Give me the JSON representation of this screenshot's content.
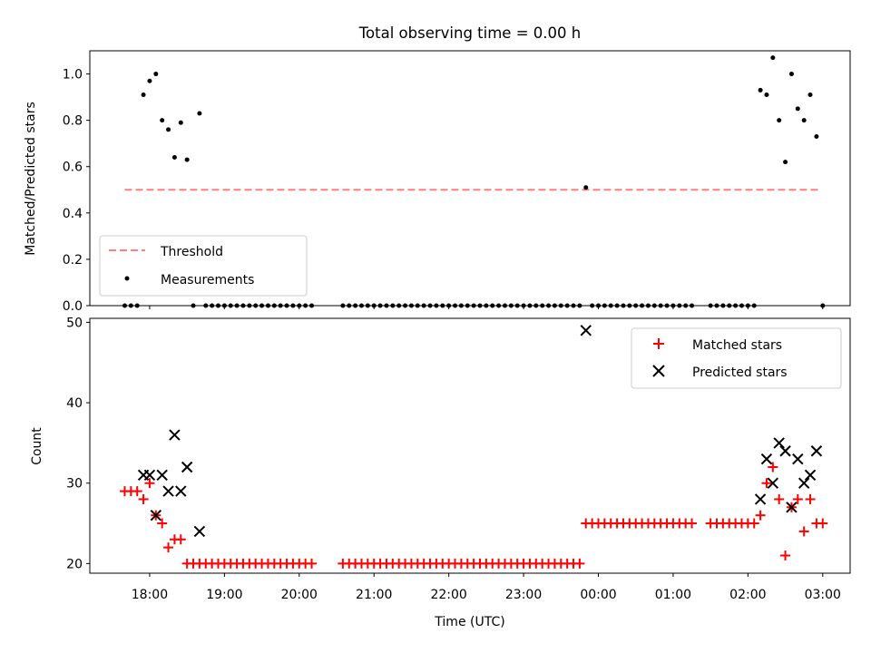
{
  "title": "Total observing time = 0.00 h",
  "chart_data": [
    {
      "type": "scatter",
      "ylabel": "Matched/Predicted stars",
      "ylim": [
        0,
        1.1
      ],
      "yticks": [
        "0.0",
        "0.2",
        "0.4",
        "0.6",
        "0.8",
        "1.0"
      ],
      "legend": {
        "placement": "lower-left",
        "entries": [
          "Threshold",
          "Measurements"
        ]
      },
      "threshold": {
        "name": "Threshold",
        "y": 0.5,
        "x_range": [
          "17:40",
          "02:57"
        ],
        "color": "#ff7f7f"
      },
      "measurements": {
        "name": "Measurements",
        "color": "#000000",
        "points": [
          [
            "17:40",
            0
          ],
          [
            "17:45",
            0
          ],
          [
            "17:50",
            0
          ],
          [
            "17:55",
            0.91
          ],
          [
            "18:00",
            0.97
          ],
          [
            "18:05",
            1.0
          ],
          [
            "18:10",
            0.8
          ],
          [
            "18:15",
            0.76
          ],
          [
            "18:20",
            0.64
          ],
          [
            "18:25",
            0.79
          ],
          [
            "18:30",
            0.63
          ],
          [
            "18:35",
            0
          ],
          [
            "18:40",
            0.83
          ],
          [
            "18:45",
            0
          ],
          [
            "18:50",
            0
          ],
          [
            "18:55",
            0
          ],
          [
            "19:00",
            0
          ],
          [
            "19:05",
            0
          ],
          [
            "19:10",
            0
          ],
          [
            "19:15",
            0
          ],
          [
            "19:20",
            0
          ],
          [
            "19:25",
            0
          ],
          [
            "19:30",
            0
          ],
          [
            "19:35",
            0
          ],
          [
            "19:40",
            0
          ],
          [
            "19:45",
            0
          ],
          [
            "19:50",
            0
          ],
          [
            "19:55",
            0
          ],
          [
            "20:00",
            0
          ],
          [
            "20:05",
            0
          ],
          [
            "20:10",
            0
          ],
          [
            "20:35",
            0
          ],
          [
            "20:40",
            0
          ],
          [
            "20:45",
            0
          ],
          [
            "20:50",
            0
          ],
          [
            "20:55",
            0
          ],
          [
            "21:00",
            0
          ],
          [
            "21:05",
            0
          ],
          [
            "21:10",
            0
          ],
          [
            "21:15",
            0
          ],
          [
            "21:20",
            0
          ],
          [
            "21:25",
            0
          ],
          [
            "21:30",
            0
          ],
          [
            "21:35",
            0
          ],
          [
            "21:40",
            0
          ],
          [
            "21:45",
            0
          ],
          [
            "21:50",
            0
          ],
          [
            "21:55",
            0
          ],
          [
            "22:00",
            0
          ],
          [
            "22:05",
            0
          ],
          [
            "22:10",
            0
          ],
          [
            "22:15",
            0
          ],
          [
            "22:20",
            0
          ],
          [
            "22:25",
            0
          ],
          [
            "22:30",
            0
          ],
          [
            "22:35",
            0
          ],
          [
            "22:40",
            0
          ],
          [
            "22:45",
            0
          ],
          [
            "22:50",
            0
          ],
          [
            "22:55",
            0
          ],
          [
            "23:00",
            0
          ],
          [
            "23:05",
            0
          ],
          [
            "23:10",
            0
          ],
          [
            "23:15",
            0
          ],
          [
            "23:20",
            0
          ],
          [
            "23:25",
            0
          ],
          [
            "23:30",
            0
          ],
          [
            "23:35",
            0
          ],
          [
            "23:40",
            0
          ],
          [
            "23:45",
            0
          ],
          [
            "23:50",
            0.51
          ],
          [
            "23:55",
            0
          ],
          [
            "00:00",
            0
          ],
          [
            "00:05",
            0
          ],
          [
            "00:10",
            0
          ],
          [
            "00:15",
            0
          ],
          [
            "00:20",
            0
          ],
          [
            "00:25",
            0
          ],
          [
            "00:30",
            0
          ],
          [
            "00:35",
            0
          ],
          [
            "00:40",
            0
          ],
          [
            "00:45",
            0
          ],
          [
            "00:50",
            0
          ],
          [
            "00:55",
            0
          ],
          [
            "01:00",
            0
          ],
          [
            "01:05",
            0
          ],
          [
            "01:10",
            0
          ],
          [
            "01:15",
            0
          ],
          [
            "01:30",
            0
          ],
          [
            "01:35",
            0
          ],
          [
            "01:40",
            0
          ],
          [
            "01:45",
            0
          ],
          [
            "01:50",
            0
          ],
          [
            "01:55",
            0
          ],
          [
            "02:00",
            0
          ],
          [
            "02:05",
            0
          ],
          [
            "02:10",
            0.93
          ],
          [
            "02:15",
            0.91
          ],
          [
            "02:20",
            1.07
          ],
          [
            "02:25",
            0.8
          ],
          [
            "02:30",
            0.62
          ],
          [
            "02:35",
            1.0
          ],
          [
            "02:40",
            0.85
          ],
          [
            "02:45",
            0.8
          ],
          [
            "02:50",
            0.91
          ],
          [
            "02:55",
            0.73
          ],
          [
            "03:00",
            0
          ]
        ]
      }
    },
    {
      "type": "scatter",
      "xlabel": "Time (UTC)",
      "ylabel": "Count",
      "ylim": [
        18.8,
        50.5
      ],
      "yticks": [
        "20",
        "30",
        "40",
        "50"
      ],
      "xticks": [
        "18:00",
        "19:00",
        "20:00",
        "21:00",
        "22:00",
        "23:00",
        "00:00",
        "01:00",
        "02:00",
        "03:00"
      ],
      "legend": {
        "placement": "upper-right",
        "entries": [
          "Matched stars",
          "Predicted stars"
        ]
      },
      "series": [
        {
          "name": "Matched stars",
          "marker": "plus",
          "color": "#ff0000",
          "points": [
            [
              "17:40",
              29
            ],
            [
              "17:45",
              29
            ],
            [
              "17:50",
              29
            ],
            [
              "17:55",
              28
            ],
            [
              "18:00",
              30
            ],
            [
              "18:05",
              26
            ],
            [
              "18:10",
              25
            ],
            [
              "18:15",
              22
            ],
            [
              "18:20",
              23
            ],
            [
              "18:25",
              23
            ],
            [
              "18:30",
              20
            ],
            [
              "18:35",
              20
            ],
            [
              "18:40",
              20
            ],
            [
              "18:45",
              20
            ],
            [
              "18:50",
              20
            ],
            [
              "18:55",
              20
            ],
            [
              "19:00",
              20
            ],
            [
              "19:05",
              20
            ],
            [
              "19:10",
              20
            ],
            [
              "19:15",
              20
            ],
            [
              "19:20",
              20
            ],
            [
              "19:25",
              20
            ],
            [
              "19:30",
              20
            ],
            [
              "19:35",
              20
            ],
            [
              "19:40",
              20
            ],
            [
              "19:45",
              20
            ],
            [
              "19:50",
              20
            ],
            [
              "19:55",
              20
            ],
            [
              "20:00",
              20
            ],
            [
              "20:05",
              20
            ],
            [
              "20:10",
              20
            ],
            [
              "20:35",
              20
            ],
            [
              "20:40",
              20
            ],
            [
              "20:45",
              20
            ],
            [
              "20:50",
              20
            ],
            [
              "20:55",
              20
            ],
            [
              "21:00",
              20
            ],
            [
              "21:05",
              20
            ],
            [
              "21:10",
              20
            ],
            [
              "21:15",
              20
            ],
            [
              "21:20",
              20
            ],
            [
              "21:25",
              20
            ],
            [
              "21:30",
              20
            ],
            [
              "21:35",
              20
            ],
            [
              "21:40",
              20
            ],
            [
              "21:45",
              20
            ],
            [
              "21:50",
              20
            ],
            [
              "21:55",
              20
            ],
            [
              "22:00",
              20
            ],
            [
              "22:05",
              20
            ],
            [
              "22:10",
              20
            ],
            [
              "22:15",
              20
            ],
            [
              "22:20",
              20
            ],
            [
              "22:25",
              20
            ],
            [
              "22:30",
              20
            ],
            [
              "22:35",
              20
            ],
            [
              "22:40",
              20
            ],
            [
              "22:45",
              20
            ],
            [
              "22:50",
              20
            ],
            [
              "22:55",
              20
            ],
            [
              "23:00",
              20
            ],
            [
              "23:05",
              20
            ],
            [
              "23:10",
              20
            ],
            [
              "23:15",
              20
            ],
            [
              "23:20",
              20
            ],
            [
              "23:25",
              20
            ],
            [
              "23:30",
              20
            ],
            [
              "23:35",
              20
            ],
            [
              "23:40",
              20
            ],
            [
              "23:45",
              20
            ],
            [
              "23:50",
              25
            ],
            [
              "23:55",
              25
            ],
            [
              "00:00",
              25
            ],
            [
              "00:05",
              25
            ],
            [
              "00:10",
              25
            ],
            [
              "00:15",
              25
            ],
            [
              "00:20",
              25
            ],
            [
              "00:25",
              25
            ],
            [
              "00:30",
              25
            ],
            [
              "00:35",
              25
            ],
            [
              "00:40",
              25
            ],
            [
              "00:45",
              25
            ],
            [
              "00:50",
              25
            ],
            [
              "00:55",
              25
            ],
            [
              "01:00",
              25
            ],
            [
              "01:05",
              25
            ],
            [
              "01:10",
              25
            ],
            [
              "01:15",
              25
            ],
            [
              "01:30",
              25
            ],
            [
              "01:35",
              25
            ],
            [
              "01:40",
              25
            ],
            [
              "01:45",
              25
            ],
            [
              "01:50",
              25
            ],
            [
              "01:55",
              25
            ],
            [
              "02:00",
              25
            ],
            [
              "02:05",
              25
            ],
            [
              "02:10",
              26
            ],
            [
              "02:15",
              30
            ],
            [
              "02:20",
              32
            ],
            [
              "02:25",
              28
            ],
            [
              "02:30",
              21
            ],
            [
              "02:35",
              27
            ],
            [
              "02:40",
              28
            ],
            [
              "02:45",
              24
            ],
            [
              "02:50",
              28
            ],
            [
              "02:55",
              25
            ],
            [
              "03:00",
              25
            ]
          ]
        },
        {
          "name": "Predicted stars",
          "marker": "x",
          "color": "#000000",
          "points": [
            [
              "17:55",
              31
            ],
            [
              "18:00",
              31
            ],
            [
              "18:05",
              26
            ],
            [
              "18:10",
              31
            ],
            [
              "18:15",
              29
            ],
            [
              "18:20",
              36
            ],
            [
              "18:25",
              29
            ],
            [
              "18:30",
              32
            ],
            [
              "18:40",
              24
            ],
            [
              "23:50",
              49
            ],
            [
              "02:10",
              28
            ],
            [
              "02:15",
              33
            ],
            [
              "02:20",
              30
            ],
            [
              "02:25",
              35
            ],
            [
              "02:30",
              34
            ],
            [
              "02:35",
              27
            ],
            [
              "02:40",
              33
            ],
            [
              "02:45",
              30
            ],
            [
              "02:50",
              31
            ],
            [
              "02:55",
              34
            ]
          ]
        }
      ]
    }
  ]
}
